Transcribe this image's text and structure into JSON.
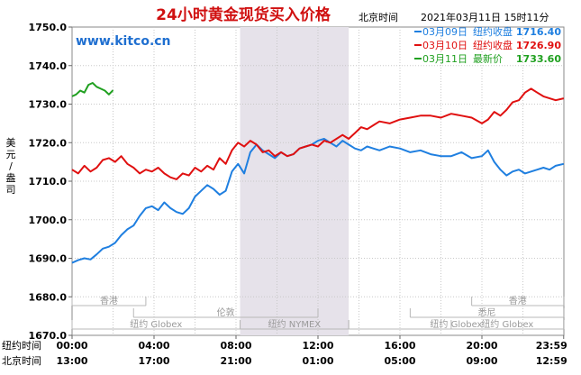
{
  "header": {
    "title": "24小时黄金现货买入价格",
    "tz_label": "北京时间",
    "datetime": "2021年03月11日 15时11分",
    "watermark": "www.kitco.cn"
  },
  "legend": [
    {
      "date": "03月09日",
      "kind": "纽约收盘",
      "value": "1716.40",
      "color": "#1f7fe0"
    },
    {
      "date": "03月10日",
      "kind": "纽约收盘",
      "value": "1726.90",
      "color": "#e01010"
    },
    {
      "date": "03月11日",
      "kind": "最新价",
      "value": "1733.60",
      "color": "#20a020"
    }
  ],
  "y_unit": "美元/盎司",
  "row_labels": {
    "ny": "纽约时间",
    "bj": "北京时间"
  },
  "x_ticks_ny": [
    "00:00",
    "04:00",
    "08:00",
    "12:00",
    "16:00",
    "20:00",
    "23:59"
  ],
  "x_ticks_bj": [
    "13:00",
    "17:00",
    "21:00",
    "01:00",
    "05:00",
    "09:00",
    "12:59"
  ],
  "markets": [
    {
      "name": "香港",
      "start": 0,
      "end": 3.6,
      "row": 0
    },
    {
      "name": "香港",
      "start": 19.5,
      "end": 23.99,
      "row": 0
    },
    {
      "name": "伦敦",
      "start": 3,
      "end": 12,
      "row": 1
    },
    {
      "name": "悉尼",
      "start": 16.5,
      "end": 23.99,
      "row": 1
    },
    {
      "name": "纽约 Globex",
      "start": 0,
      "end": 8.2,
      "row": 2
    },
    {
      "name": "纽约 NYMEX",
      "start": 8.2,
      "end": 13.5,
      "row": 2
    },
    {
      "name": "纽约 Globex",
      "start": 13.5,
      "end": 23.99,
      "row": 2
    },
    {
      "name": "纽约 Globex",
      "start": 18.5,
      "end": 23.99,
      "row": 2
    }
  ],
  "chart_data": {
    "type": "line",
    "title": "24小时黄金现货买入价格",
    "ylabel": "美元/盎司",
    "ylim": [
      1670,
      1750
    ],
    "yticks": [
      1670.0,
      1680.0,
      1690.0,
      1700.0,
      1710.0,
      1720.0,
      1730.0,
      1740.0,
      1750.0
    ],
    "xlim": [
      0,
      24
    ],
    "x_unit": "纽约时间 (小时)",
    "shaded_region": [
      8.2,
      13.5
    ],
    "grid": true,
    "series": [
      {
        "name": "03月09日",
        "color": "#1f7fe0",
        "x": [
          0,
          0.3,
          0.6,
          0.9,
          1.2,
          1.5,
          1.8,
          2.1,
          2.4,
          2.7,
          3.0,
          3.3,
          3.6,
          3.9,
          4.2,
          4.5,
          4.8,
          5.1,
          5.4,
          5.7,
          6.0,
          6.3,
          6.6,
          6.9,
          7.2,
          7.5,
          7.8,
          8.1,
          8.4,
          8.7,
          9.0,
          9.3,
          9.6,
          9.9,
          10.2,
          10.5,
          10.8,
          11.1,
          11.4,
          11.7,
          12.0,
          12.3,
          12.6,
          12.9,
          13.2,
          13.5,
          13.8,
          14.1,
          14.4,
          14.7,
          15.0,
          15.5,
          16.0,
          16.5,
          17.0,
          17.5,
          18.0,
          18.5,
          19.0,
          19.5,
          20.0,
          20.3,
          20.6,
          20.9,
          21.2,
          21.5,
          21.8,
          22.1,
          22.4,
          22.7,
          23.0,
          23.3,
          23.6,
          23.99
        ],
        "y": [
          1688.8,
          1689.5,
          1690.0,
          1689.7,
          1691.0,
          1692.5,
          1693.0,
          1694.0,
          1696.0,
          1697.5,
          1698.5,
          1701.0,
          1703.0,
          1703.5,
          1702.5,
          1704.5,
          1703.0,
          1702.0,
          1701.5,
          1703.0,
          1706.0,
          1707.5,
          1709.0,
          1708.0,
          1706.5,
          1707.5,
          1712.5,
          1714.5,
          1712.0,
          1717.5,
          1719.5,
          1718.0,
          1717.0,
          1716.0,
          1717.5,
          1716.5,
          1717.0,
          1718.5,
          1719.0,
          1719.5,
          1720.5,
          1721.0,
          1720.0,
          1719.0,
          1720.5,
          1719.5,
          1718.5,
          1718.0,
          1719.0,
          1718.5,
          1718.0,
          1719.0,
          1718.5,
          1717.5,
          1718.0,
          1717.0,
          1716.5,
          1716.5,
          1717.5,
          1716.0,
          1716.5,
          1718.0,
          1715.0,
          1713.0,
          1711.5,
          1712.5,
          1713.0,
          1712.0,
          1712.5,
          1713.0,
          1713.5,
          1713.0,
          1714.0,
          1714.5
        ]
      },
      {
        "name": "03月10日",
        "color": "#e01010",
        "x": [
          0,
          0.3,
          0.6,
          0.9,
          1.2,
          1.5,
          1.8,
          2.1,
          2.4,
          2.7,
          3.0,
          3.3,
          3.6,
          3.9,
          4.2,
          4.5,
          4.8,
          5.1,
          5.4,
          5.7,
          6.0,
          6.3,
          6.6,
          6.9,
          7.2,
          7.5,
          7.8,
          8.1,
          8.4,
          8.7,
          9.0,
          9.3,
          9.6,
          9.9,
          10.2,
          10.5,
          10.8,
          11.1,
          11.4,
          11.7,
          12.0,
          12.3,
          12.6,
          12.9,
          13.2,
          13.5,
          13.8,
          14.1,
          14.4,
          14.7,
          15.0,
          15.5,
          16.0,
          16.5,
          17.0,
          17.5,
          18.0,
          18.5,
          19.0,
          19.5,
          20.0,
          20.3,
          20.6,
          20.9,
          21.2,
          21.5,
          21.8,
          22.1,
          22.4,
          22.7,
          23.0,
          23.3,
          23.6,
          23.99
        ],
        "y": [
          1713.0,
          1712.0,
          1714.0,
          1712.5,
          1713.5,
          1715.5,
          1716.0,
          1715.0,
          1716.5,
          1714.5,
          1713.5,
          1712.0,
          1713.0,
          1712.5,
          1713.5,
          1712.0,
          1711.0,
          1710.5,
          1712.0,
          1711.5,
          1713.5,
          1712.5,
          1714.0,
          1713.0,
          1716.0,
          1714.5,
          1718.0,
          1720.0,
          1719.0,
          1720.5,
          1719.5,
          1717.5,
          1718.0,
          1716.5,
          1717.5,
          1716.5,
          1717.0,
          1718.5,
          1719.0,
          1719.5,
          1719.0,
          1720.5,
          1720.0,
          1721.0,
          1722.0,
          1721.0,
          1722.5,
          1724.0,
          1723.5,
          1724.5,
          1725.5,
          1725.0,
          1726.0,
          1726.5,
          1727.0,
          1727.0,
          1726.5,
          1727.5,
          1727.0,
          1726.5,
          1725.0,
          1726.0,
          1728.0,
          1727.0,
          1728.5,
          1730.5,
          1731.0,
          1733.0,
          1734.0,
          1733.0,
          1732.0,
          1731.5,
          1731.0,
          1731.5
        ]
      },
      {
        "name": "03月11日",
        "color": "#20a020",
        "x": [
          0,
          0.2,
          0.4,
          0.6,
          0.8,
          1.0,
          1.2,
          1.4,
          1.6,
          1.8,
          2.0
        ],
        "y": [
          1732.0,
          1732.5,
          1733.5,
          1733.0,
          1735.0,
          1735.5,
          1734.5,
          1734.0,
          1733.5,
          1732.5,
          1733.6
        ]
      }
    ]
  }
}
